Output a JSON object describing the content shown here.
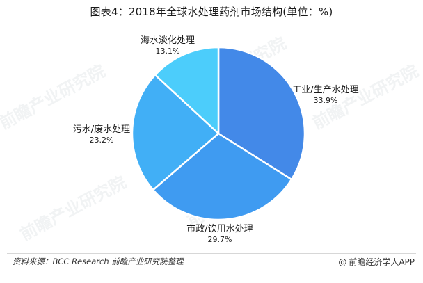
{
  "chart_data": {
    "type": "pie",
    "title": "图表4：2018年全球水处理药剂市场结构(单位：%)",
    "unit": "%",
    "slices": [
      {
        "label": "工业/生产水处理",
        "value": 33.9,
        "value_text": "33.9%",
        "color": "#4389e8"
      },
      {
        "label": "市政/饮用水处理",
        "value": 29.7,
        "value_text": "29.7%",
        "color": "#3f9bf1"
      },
      {
        "label": "污水/废水处理",
        "value": 23.2,
        "value_text": "23.2%",
        "color": "#41aff6"
      },
      {
        "label": "海水淡化处理",
        "value": 13.1,
        "value_text": "13.1%",
        "color": "#4ccdfb"
      }
    ],
    "start_angle_deg": 0,
    "direction": "clockwise",
    "legend": "none"
  },
  "footer": {
    "source": "资料来源：BCC Research 前瞻产业研究院整理",
    "brand": "前瞻经济学人APP",
    "brand_icon": "at-sign-icon"
  },
  "watermark": {
    "text": "前瞻产业研究院"
  }
}
